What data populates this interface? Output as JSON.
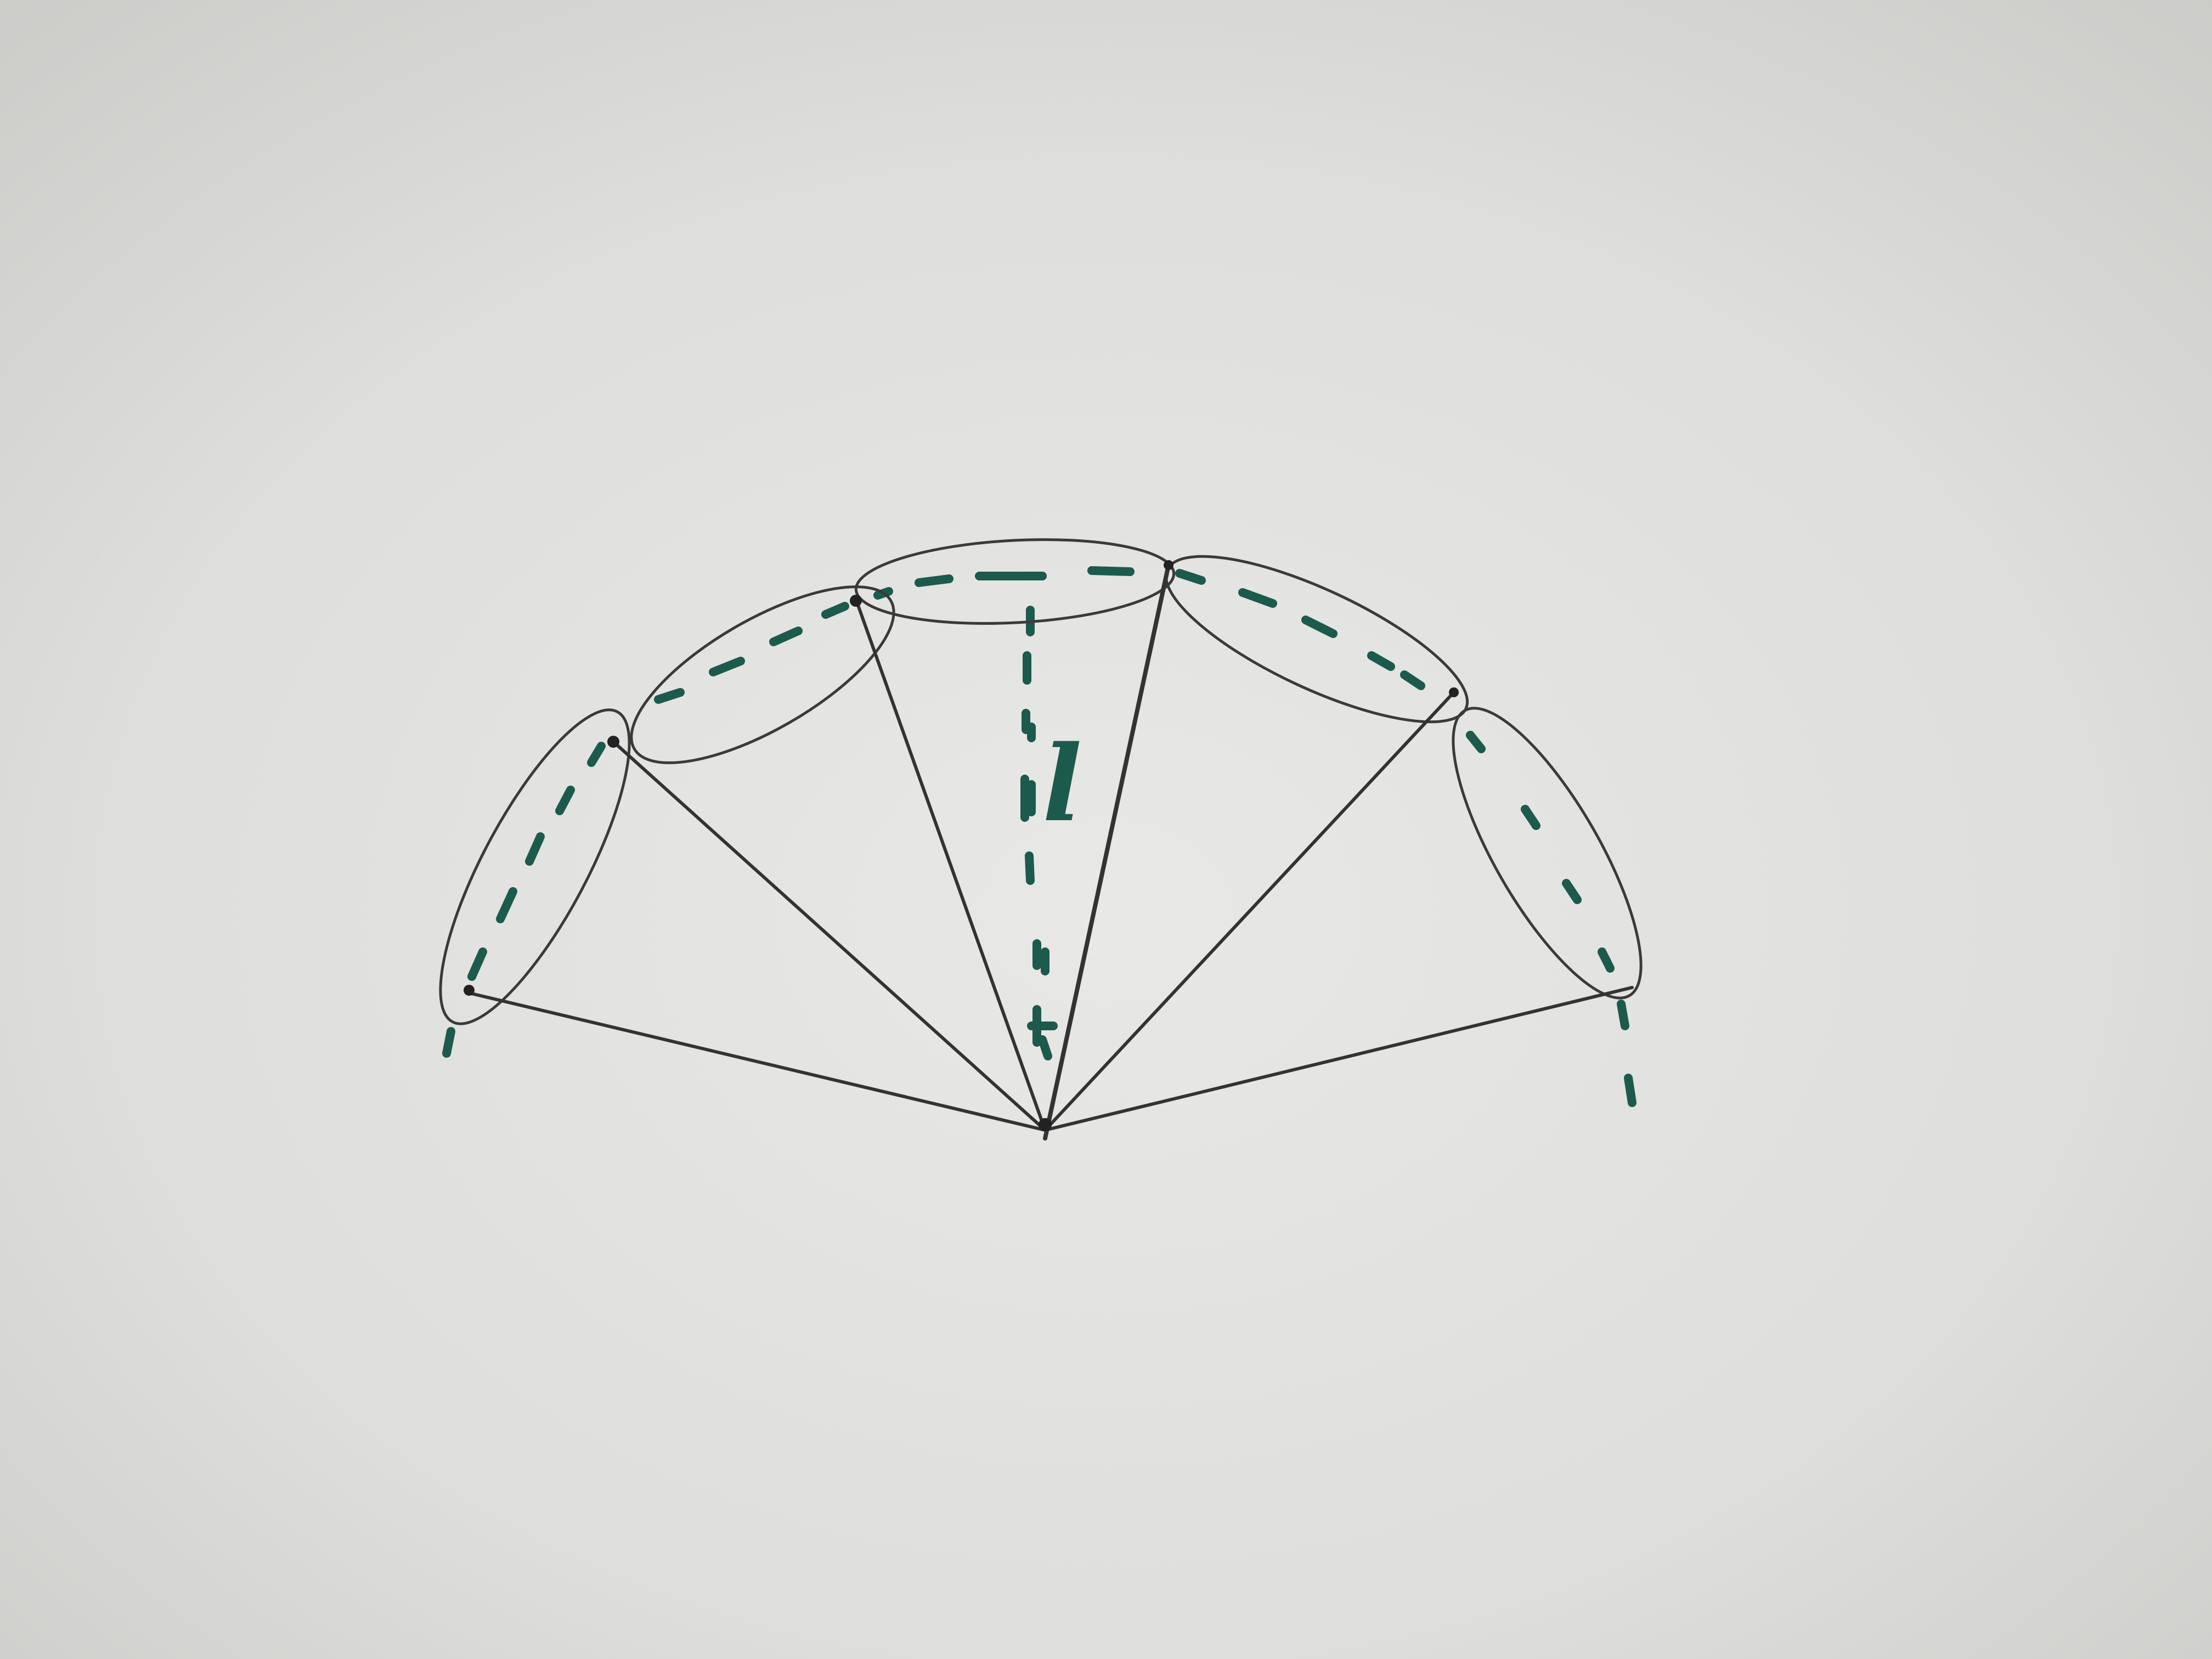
{
  "diagram": {
    "label": "l",
    "colors": {
      "paper_light": "#e6e6e4",
      "paper_dark": "#cfcfcc",
      "pencil": "#2e2e2e",
      "ink": "#1c5a4d"
    },
    "description_nodes": {
      "apex": "apex",
      "rim_vertices": 6,
      "faces": 5
    }
  }
}
